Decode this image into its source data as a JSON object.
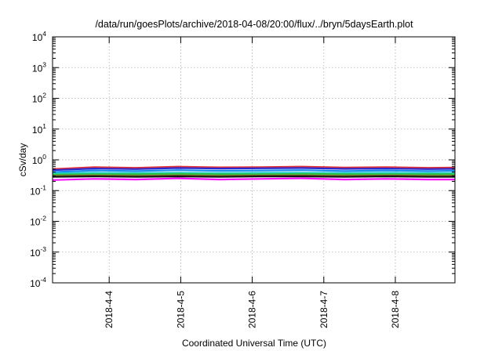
{
  "chart_data": {
    "type": "line",
    "title": "/data/run/goesPlots/archive/2018-04-08/20:00/flux/../bryn/5daysEarth.plot",
    "xlabel": "Coordinated Universal Time (UTC)",
    "ylabel": "cSv/day",
    "yscale": "log",
    "ylim": [
      0.0001,
      10000
    ],
    "xlim": [
      "2018-04-03 05:00",
      "2018-04-08 20:00"
    ],
    "grid": true,
    "y_ticks": [
      {
        "base": "10",
        "exp": "-4",
        "value": 0.0001
      },
      {
        "base": "10",
        "exp": "-3",
        "value": 0.001
      },
      {
        "base": "10",
        "exp": "-2",
        "value": 0.01
      },
      {
        "base": "10",
        "exp": "-1",
        "value": 0.1
      },
      {
        "base": "10",
        "exp": "0",
        "value": 1
      },
      {
        "base": "10",
        "exp": "1",
        "value": 10
      },
      {
        "base": "10",
        "exp": "2",
        "value": 100
      },
      {
        "base": "10",
        "exp": "3",
        "value": 1000
      },
      {
        "base": "10",
        "exp": "4",
        "value": 10000
      }
    ],
    "x_ticks": [
      {
        "label": "2018-4-4",
        "x": "2018-04-04 00:00"
      },
      {
        "label": "2018-4-5",
        "x": "2018-04-05 00:00"
      },
      {
        "label": "2018-4-6",
        "x": "2018-04-06 00:00"
      },
      {
        "label": "2018-4-7",
        "x": "2018-04-07 00:00"
      },
      {
        "label": "2018-4-8",
        "x": "2018-04-08 00:00"
      }
    ],
    "series": [
      {
        "color": "#e0303a",
        "x": [
          "2018-04-03 05:00",
          "2018-04-03 19:00",
          "2018-04-04 09:00",
          "2018-04-04 23:00",
          "2018-04-05 13:00",
          "2018-04-06 03:00",
          "2018-04-06 17:00",
          "2018-04-07 07:00",
          "2018-04-07 21:00",
          "2018-04-08 11:00",
          "2018-04-08 20:00"
        ],
        "y": [
          0.5,
          0.58,
          0.55,
          0.6,
          0.57,
          0.58,
          0.6,
          0.56,
          0.58,
          0.55,
          0.56
        ]
      },
      {
        "color": "#2a2ad0",
        "x": [
          "2018-04-03 05:00",
          "2018-04-03 19:00",
          "2018-04-04 09:00",
          "2018-04-04 23:00",
          "2018-04-05 13:00",
          "2018-04-06 03:00",
          "2018-04-06 17:00",
          "2018-04-07 07:00",
          "2018-04-07 21:00",
          "2018-04-08 11:00",
          "2018-04-08 20:00"
        ],
        "y": [
          0.46,
          0.52,
          0.5,
          0.54,
          0.52,
          0.53,
          0.54,
          0.51,
          0.52,
          0.5,
          0.51
        ]
      },
      {
        "color": "#1a8cf0",
        "x": [
          "2018-04-03 05:00",
          "2018-04-03 19:00",
          "2018-04-04 09:00",
          "2018-04-04 23:00",
          "2018-04-05 13:00",
          "2018-04-06 03:00",
          "2018-04-06 17:00",
          "2018-04-07 07:00",
          "2018-04-07 21:00",
          "2018-04-08 11:00",
          "2018-04-08 20:00"
        ],
        "y": [
          0.4,
          0.45,
          0.43,
          0.46,
          0.44,
          0.45,
          0.46,
          0.43,
          0.45,
          0.43,
          0.44
        ]
      },
      {
        "color": "#20d0c8",
        "x": [
          "2018-04-03 05:00",
          "2018-04-03 19:00",
          "2018-04-04 09:00",
          "2018-04-04 23:00",
          "2018-04-05 13:00",
          "2018-04-06 03:00",
          "2018-04-06 17:00",
          "2018-04-07 07:00",
          "2018-04-07 21:00",
          "2018-04-08 11:00",
          "2018-04-08 20:00"
        ],
        "y": [
          0.36,
          0.38,
          0.37,
          0.38,
          0.37,
          0.38,
          0.38,
          0.37,
          0.38,
          0.37,
          0.37
        ]
      },
      {
        "color": "#30c040",
        "x": [
          "2018-04-03 05:00",
          "2018-04-03 19:00",
          "2018-04-04 09:00",
          "2018-04-04 23:00",
          "2018-04-05 13:00",
          "2018-04-06 03:00",
          "2018-04-06 17:00",
          "2018-04-07 07:00",
          "2018-04-07 21:00",
          "2018-04-08 11:00",
          "2018-04-08 20:00"
        ],
        "y": [
          0.33,
          0.34,
          0.34,
          0.35,
          0.34,
          0.34,
          0.35,
          0.34,
          0.34,
          0.34,
          0.34
        ]
      },
      {
        "color": "#8a6a2a",
        "x": [
          "2018-04-03 05:00",
          "2018-04-03 19:00",
          "2018-04-04 09:00",
          "2018-04-04 23:00",
          "2018-04-05 13:00",
          "2018-04-06 03:00",
          "2018-04-06 17:00",
          "2018-04-07 07:00",
          "2018-04-07 21:00",
          "2018-04-08 11:00",
          "2018-04-08 20:00"
        ],
        "y": [
          0.3,
          0.31,
          0.3,
          0.31,
          0.3,
          0.31,
          0.31,
          0.3,
          0.31,
          0.3,
          0.3
        ]
      },
      {
        "color": "#111111",
        "x": [
          "2018-04-03 05:00",
          "2018-04-03 19:00",
          "2018-04-04 09:00",
          "2018-04-04 23:00",
          "2018-04-05 13:00",
          "2018-04-06 03:00",
          "2018-04-06 17:00",
          "2018-04-07 07:00",
          "2018-04-07 21:00",
          "2018-04-08 11:00",
          "2018-04-08 20:00"
        ],
        "y": [
          0.28,
          0.29,
          0.28,
          0.29,
          0.28,
          0.29,
          0.29,
          0.28,
          0.29,
          0.28,
          0.28
        ]
      },
      {
        "color": "#ff10ff",
        "x": [
          "2018-04-03 05:00",
          "2018-04-03 19:00",
          "2018-04-04 09:00",
          "2018-04-04 23:00",
          "2018-04-05 13:00",
          "2018-04-06 03:00",
          "2018-04-06 17:00",
          "2018-04-07 07:00",
          "2018-04-07 21:00",
          "2018-04-08 11:00",
          "2018-04-08 20:00"
        ],
        "y": [
          0.22,
          0.24,
          0.23,
          0.25,
          0.23,
          0.24,
          0.25,
          0.23,
          0.24,
          0.23,
          0.23
        ]
      }
    ]
  }
}
